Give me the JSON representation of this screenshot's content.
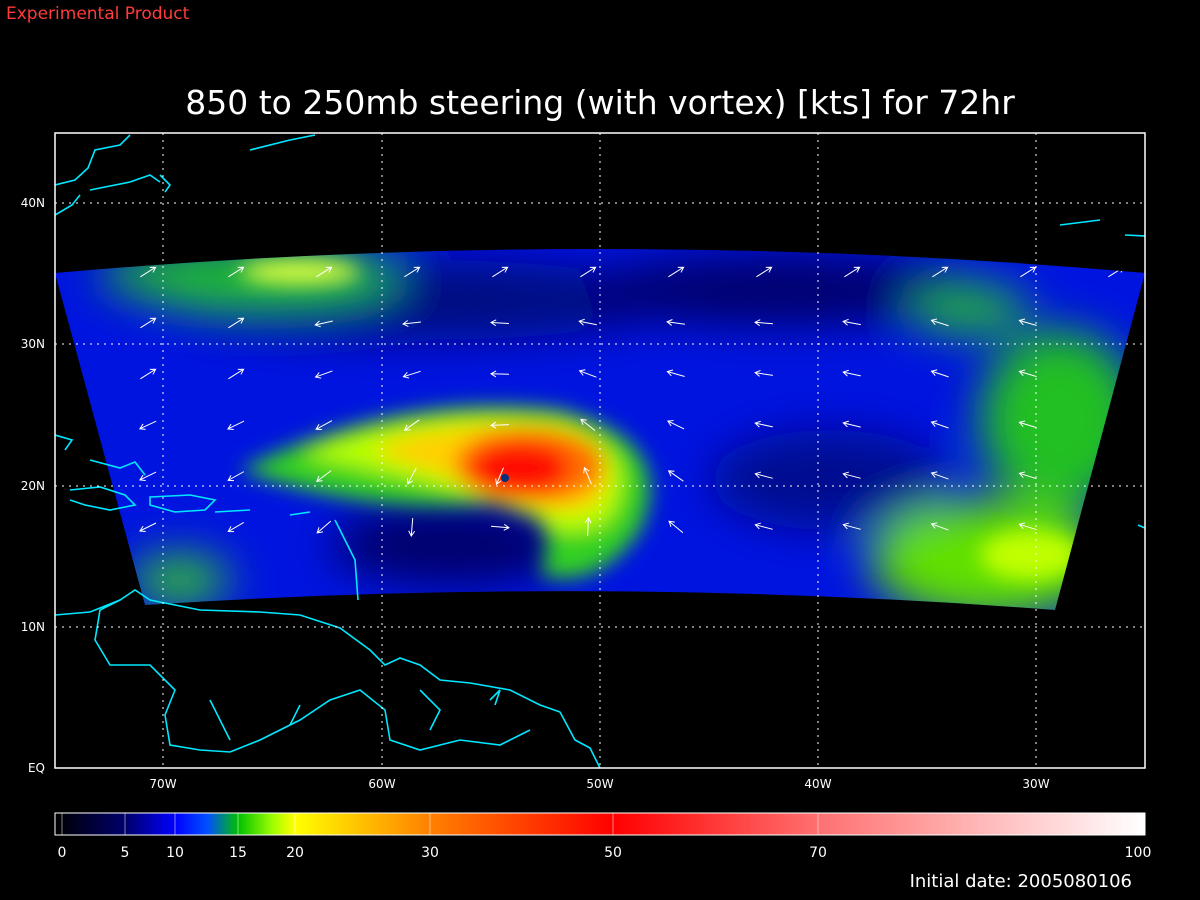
{
  "header": {
    "label": "Experimental Product"
  },
  "map": {
    "title": "850 to 250mb steering (with vortex) [kts] for 72hr",
    "lat_labels": [
      "40N",
      "30N",
      "20N",
      "10N",
      "EQ"
    ],
    "lon_labels": [
      "70W",
      "60W",
      "50W",
      "40W",
      "30W"
    ]
  },
  "colorbar": {
    "ticks": [
      0,
      5,
      10,
      15,
      20,
      30,
      50,
      70,
      100
    ]
  },
  "footer": {
    "initial_date": "Initial date: 2005080106"
  }
}
